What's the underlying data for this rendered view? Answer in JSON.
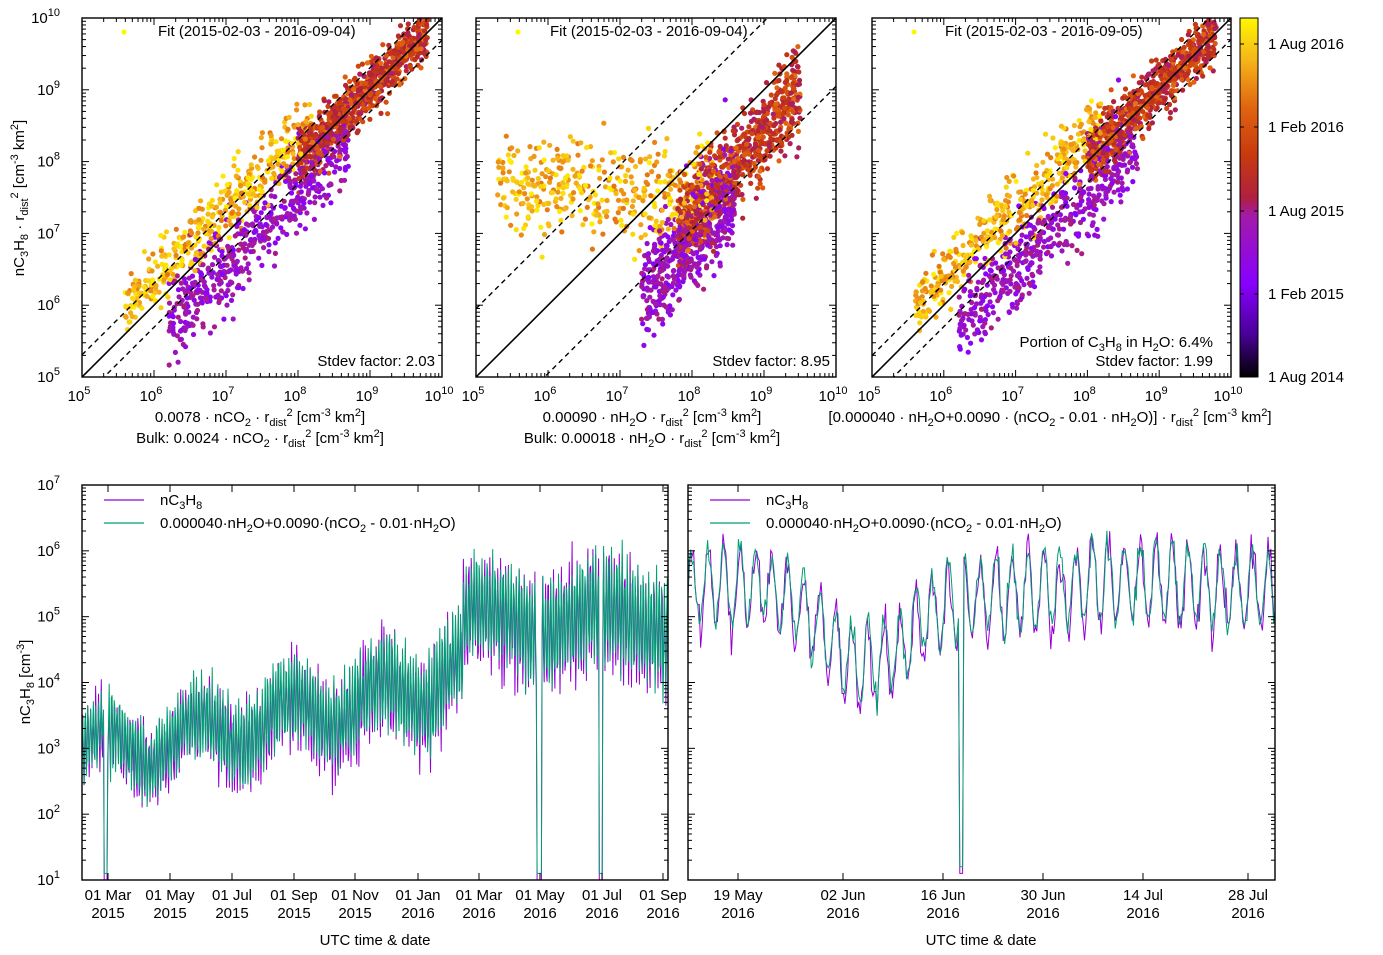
{
  "colors": {
    "purple": "#9400D3",
    "teal": "#009E73",
    "cbar_top": "#FFF700",
    "cbar_mid": "#D4450F",
    "cbar_bot": "#000000"
  },
  "scatter": {
    "y_label": [
      "nC",
      "3",
      "H",
      "8",
      " · r",
      "dist",
      "2",
      " [cm",
      "-3",
      " km",
      "2",
      "]"
    ],
    "xlim_exp": [
      5,
      10
    ],
    "ylim_exp": [
      5,
      10
    ],
    "tick_base": "10",
    "tick_exps": [
      "5",
      "6",
      "7",
      "8",
      "9",
      "10"
    ]
  },
  "colorbar": {
    "ticks": [
      "1 Aug 2016",
      "1 Feb 2016",
      "1 Aug 2015",
      "1 Feb 2015",
      "1 Aug 2014"
    ]
  },
  "chart_data": [
    {
      "type": "scatter",
      "legend": "Fit (2015-02-03 - 2016-09-04)",
      "xlabel_line1": "0.0078 · nCO2 · rdist2 [cm-3 km2]",
      "xlabel_line2": "Bulk: 0.0024 · nCO2 · rdist2 [cm-3 km2]",
      "annotation": "Stdev factor: 2.03",
      "stdev_factor": 2.03,
      "xlog": true,
      "ylog": true,
      "xlim": [
        100000.0,
        10000000000.0
      ],
      "ylim": [
        100000.0,
        10000000000.0
      ]
    },
    {
      "type": "scatter",
      "legend": "Fit (2015-02-03 - 2016-09-04)",
      "xlabel_line1": "0.00090 · nH2O · rdist2 [cm-3 km2]",
      "xlabel_line2": "Bulk: 0.00018 · nH2O · rdist2 [cm-3 km2]",
      "annotation": "Stdev factor: 8.95",
      "stdev_factor": 8.95,
      "xlog": true,
      "ylog": true,
      "xlim": [
        100000.0,
        10000000000.0
      ],
      "ylim": [
        100000.0,
        10000000000.0
      ]
    },
    {
      "type": "scatter",
      "legend": "Fit (2015-02-03 - 2016-09-05)",
      "xlabel_line1": "[0.000040 · nH2O+0.0090 · (nCO2 - 0.01 · nH2O)] · rdist2 [cm-3 km2]",
      "annotation_line1": "Portion of C3H8 in H2O: 6.4%",
      "annotation": "Stdev factor: 1.99",
      "stdev_factor": 1.99,
      "xlog": true,
      "ylog": true,
      "xlim": [
        100000.0,
        10000000000.0
      ],
      "ylim": [
        100000.0,
        10000000000.0
      ]
    },
    {
      "type": "line",
      "xlabel": "UTC time & date",
      "ylabel": "nC3H8 [cm-3]",
      "ylog": true,
      "ylim": [
        10,
        10000000.0
      ],
      "x_ticks": [
        "01 Mar 2015",
        "01 May 2015",
        "01 Jul 2015",
        "01 Sep 2015",
        "01 Nov 2015",
        "01 Jan 2016",
        "01 Mar 2016",
        "01 May 2016",
        "01 Jul 2016",
        "01 Sep 2016"
      ],
      "series": [
        {
          "name": "nC3H8",
          "color": "#9400D3"
        },
        {
          "name": "0.000040·nH2O+0.0090·(nCO2 - 0.01·nH2O)",
          "color": "#009E73"
        }
      ]
    },
    {
      "type": "line",
      "xlabel": "UTC time & date",
      "ylog": true,
      "ylim": [
        10,
        10000000.0
      ],
      "x_ticks": [
        "19 May 2016",
        "02 Jun 2016",
        "16 Jun 2016",
        "30 Jun 2016",
        "14 Jul 2016",
        "28 Jul 2016"
      ],
      "series": [
        {
          "name": "nC3H8",
          "color": "#9400D3"
        },
        {
          "name": "0.000040·nH2O+0.0090·(nCO2 - 0.01·nH2O)",
          "color": "#009E73"
        }
      ]
    }
  ],
  "labels": {
    "s1_x1": [
      "0.0078 · nCO",
      "2",
      " · r",
      "dist",
      "2",
      " [cm",
      "-3",
      " km",
      "2",
      "]"
    ],
    "s1_x2": [
      "Bulk: 0.0024 · nCO",
      "2",
      " · r",
      "dist",
      "2",
      " [cm",
      "-3",
      " km",
      "2",
      "]"
    ],
    "s2_x1": [
      "0.00090 · nH",
      "2",
      "O · r",
      "dist",
      "2",
      " [cm",
      "-3",
      " km",
      "2",
      "]"
    ],
    "s2_x2": [
      "Bulk: 0.00018 · nH",
      "2",
      "O · r",
      "dist",
      "2",
      " [cm",
      "-3",
      " km",
      "2",
      "]"
    ],
    "s3_x1": [
      "[0.000040 · nH",
      "2",
      "O+0.0090 · (nCO",
      "2",
      " - 0.01 · nH",
      "2",
      "O)] · r",
      "dist",
      "2",
      " [cm",
      "-3",
      " km",
      "2",
      "]"
    ],
    "s3_ann": [
      "Portion of C",
      "3",
      "H",
      "8",
      " in H",
      "2",
      "O: 6.4%"
    ],
    "ts_ylabel": [
      "nC",
      "3",
      "H",
      "8",
      " [cm",
      "-3",
      "]"
    ],
    "leg_a": [
      "nC",
      "3",
      "H",
      "8"
    ],
    "leg_b": [
      "0.000040·nH",
      "2",
      "O+0.0090·(nCO",
      "2",
      " - 0.01·nH",
      "2",
      "O)"
    ]
  }
}
